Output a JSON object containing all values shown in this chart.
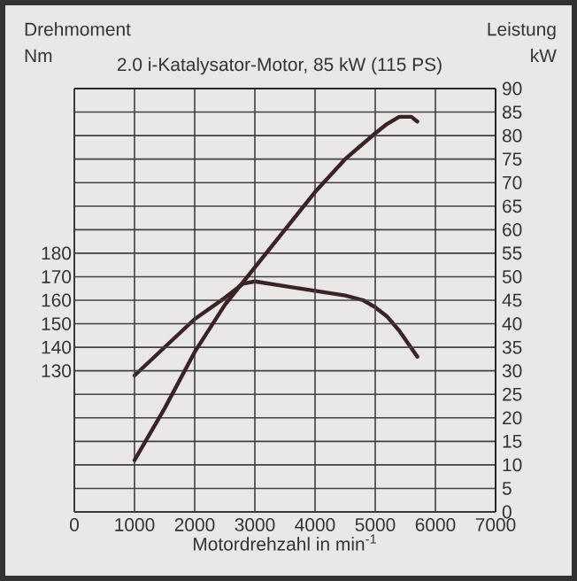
{
  "chart_data": {
    "type": "line",
    "title": "2.0 i-Katalysator-Motor, 85 kW (115 PS)",
    "xlabel": "Motordrehzahl in min$^{-1}$",
    "ylabel": "Drehmoment Nm",
    "y2label": "Leistung kW",
    "xlim": [
      0,
      7000
    ],
    "xticks": [
      0,
      1000,
      2000,
      3000,
      4000,
      5000,
      6000,
      7000
    ],
    "ylim": [
      70,
      250
    ],
    "yticks": [
      130,
      140,
      150,
      160,
      170,
      180
    ],
    "y2lim": [
      0,
      90
    ],
    "y2ticks": [
      0,
      5,
      10,
      15,
      20,
      25,
      30,
      35,
      40,
      45,
      50,
      55,
      60,
      65,
      70,
      75,
      80,
      85,
      90
    ],
    "grid": true,
    "marker": "none",
    "line_style": "solid",
    "series": [
      {
        "color": "#3a2326",
        "x": [
          1000,
          1500,
          2000,
          2500,
          2800,
          3000,
          3500,
          4000,
          4500,
          4800,
          5000,
          5200,
          5400,
          5700
        ],
        "values": [
          128,
          140,
          152,
          161,
          167,
          168,
          166,
          164,
          162,
          160,
          157,
          153,
          147,
          136
        ]
      },
      {
        "color": "#3a2326",
        "axis": "y2",
        "x": [
          1000,
          1500,
          2000,
          2500,
          3000,
          3500,
          4000,
          4500,
          5000,
          5200,
          5400,
          5600,
          5700
        ],
        "values": [
          11,
          22,
          34,
          44,
          52,
          60,
          68,
          75,
          80.5,
          82.5,
          84,
          84,
          83
        ]
      }
    ]
  }
}
